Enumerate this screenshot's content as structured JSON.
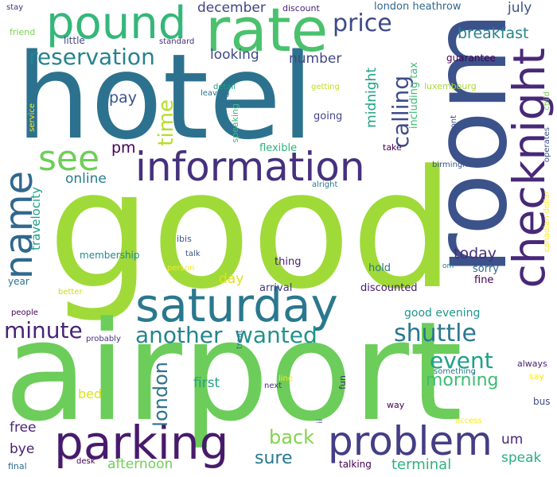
{
  "words": [
    {
      "text": "good",
      "color": "#a0da39"
    },
    {
      "text": "airport",
      "color": "#6ccd5a"
    },
    {
      "text": "hotel",
      "color": "#2c728e"
    },
    {
      "text": "room",
      "color": "#3b528b"
    },
    {
      "text": "rate",
      "color": "#4ac16d"
    },
    {
      "text": "pound",
      "color": "#35b779"
    },
    {
      "text": "checknight",
      "color": "#482878"
    },
    {
      "text": "information",
      "color": "#46307e"
    },
    {
      "text": "saturday",
      "color": "#2a788e"
    },
    {
      "text": "parking",
      "color": "#481a6c"
    },
    {
      "text": "problem",
      "color": "#433e85"
    },
    {
      "text": "name",
      "color": "#31688e"
    },
    {
      "text": "see",
      "color": "#6ece58"
    },
    {
      "text": "reservation",
      "color": "#26828e"
    },
    {
      "text": "price",
      "color": "#3e4a89"
    },
    {
      "text": "minute",
      "color": "#482475"
    },
    {
      "text": "another",
      "color": "#25848e"
    },
    {
      "text": "wanted",
      "color": "#21918c"
    },
    {
      "text": "shuttle",
      "color": "#2a788e"
    },
    {
      "text": "event",
      "color": "#1fa088"
    },
    {
      "text": "morning",
      "color": "#3dbc74"
    },
    {
      "text": "calling",
      "color": "#3e4c8a"
    },
    {
      "text": "breakfast",
      "color": "#25838e"
    },
    {
      "text": "time",
      "color": "#b5de2b"
    },
    {
      "text": "london",
      "color": "#2c728e"
    },
    {
      "text": "back",
      "color": "#84d44b"
    },
    {
      "text": "sure",
      "color": "#2a788e"
    },
    {
      "text": "terminal",
      "color": "#2db27d"
    },
    {
      "text": "afternoon",
      "color": "#70cf57"
    },
    {
      "text": "speak",
      "color": "#29af7f"
    },
    {
      "text": "today",
      "color": "#472d7b"
    },
    {
      "text": "online",
      "color": "#297b8e"
    },
    {
      "text": "pm",
      "color": "#440154"
    },
    {
      "text": "pay",
      "color": "#3b528b"
    },
    {
      "text": "looking",
      "color": "#3e4989"
    },
    {
      "text": "number",
      "color": "#404688"
    },
    {
      "text": "july",
      "color": "#3b528b"
    },
    {
      "text": "midnight",
      "color": "#1fa187"
    },
    {
      "text": "december",
      "color": "#414487"
    },
    {
      "text": "first",
      "color": "#20a386"
    },
    {
      "text": "day",
      "color": "#dde318"
    },
    {
      "text": "free",
      "color": "#482677"
    },
    {
      "text": "bye",
      "color": "#481f70"
    },
    {
      "text": "um",
      "color": "#482677"
    },
    {
      "text": "bed",
      "color": "#dde318"
    },
    {
      "text": "travelocity",
      "color": "#1f9e89"
    },
    {
      "text": "good evening",
      "color": "#1f968b"
    },
    {
      "text": "including tax",
      "color": "#3fbc73"
    },
    {
      "text": "london heathrow",
      "color": "#31688e"
    },
    {
      "text": "discounted",
      "color": "#48186a"
    },
    {
      "text": "guarantee",
      "color": "#440154"
    },
    {
      "text": "luxembourg",
      "color": "#a8db34"
    },
    {
      "text": "canadian dollar",
      "color": "#fde725"
    },
    {
      "text": "birmingham",
      "color": "#3b528b"
    },
    {
      "text": "flexible",
      "color": "#2eb37c"
    },
    {
      "text": "arrival",
      "color": "#453781"
    },
    {
      "text": "hold",
      "color": "#2c728e"
    },
    {
      "text": "thing",
      "color": "#481b6d"
    },
    {
      "text": "fine",
      "color": "#440154"
    },
    {
      "text": "sorry",
      "color": "#2d708e"
    },
    {
      "text": "going",
      "color": "#404588"
    },
    {
      "text": "membership",
      "color": "#24878e"
    },
    {
      "text": "person",
      "color": "#fde725"
    },
    {
      "text": "talk",
      "color": "#3b528b"
    },
    {
      "text": "ibis",
      "color": "#3b528b"
    },
    {
      "text": "year",
      "color": "#2c728e"
    },
    {
      "text": "little",
      "color": "#3e4a89"
    },
    {
      "text": "standard",
      "color": "#46307e"
    },
    {
      "text": "detail",
      "color": "#1fa088"
    },
    {
      "text": "leaving",
      "color": "#2c728e"
    },
    {
      "text": "getting",
      "color": "#bddf26"
    },
    {
      "text": "speaking",
      "color": "#3dbc74"
    },
    {
      "text": "stay",
      "color": "#46307e"
    },
    {
      "text": "friend",
      "color": "#7ad151"
    },
    {
      "text": "discount",
      "color": "#482576"
    },
    {
      "text": "service",
      "color": "#fde725"
    },
    {
      "text": "take",
      "color": "#440154"
    },
    {
      "text": "front",
      "color": "#3e4a89"
    },
    {
      "text": "operates",
      "color": "#3b528b"
    },
    {
      "text": "child",
      "color": "#7ad151"
    },
    {
      "text": "alright",
      "color": "#287c8e"
    },
    {
      "text": "better",
      "color": "#c8e020"
    },
    {
      "text": "people",
      "color": "#440154"
    },
    {
      "text": "probably",
      "color": "#46307e"
    },
    {
      "text": "treat",
      "color": "#2d708e"
    },
    {
      "text": "next",
      "color": "#463480"
    },
    {
      "text": "line",
      "color": "#fde725"
    },
    {
      "text": "fun",
      "color": "#472c7a"
    },
    {
      "text": "way",
      "color": "#440154"
    },
    {
      "text": "something",
      "color": "#2a788e"
    },
    {
      "text": "always",
      "color": "#482071"
    },
    {
      "text": "say",
      "color": "#fde725"
    },
    {
      "text": "bus",
      "color": "#3e4a89"
    },
    {
      "text": "access",
      "color": "#fde725"
    },
    {
      "text": "ii",
      "color": "#404588"
    },
    {
      "text": "talking",
      "color": "#440154"
    },
    {
      "text": "desk",
      "color": "#440154"
    },
    {
      "text": "final",
      "color": "#2e6f8e"
    },
    {
      "text": "om",
      "color": "#2a788e"
    }
  ]
}
